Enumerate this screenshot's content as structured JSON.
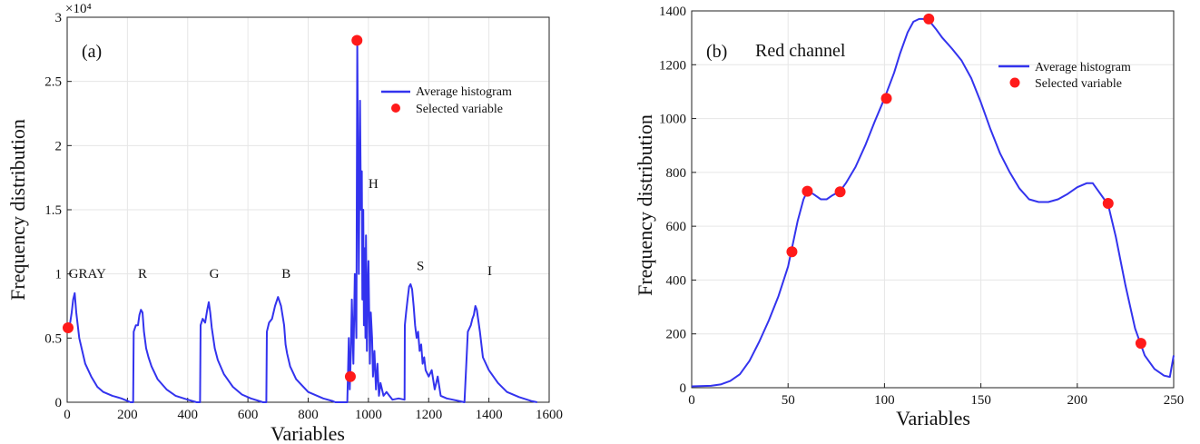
{
  "chart_data": [
    {
      "type": "line",
      "panel_label": "(a)",
      "xlabel": "Variables",
      "ylabel": "Frequency distribution",
      "xlim": [
        0,
        1600
      ],
      "ylim": [
        0,
        3
      ],
      "y_multiplier": "×10⁴",
      "x_ticks": [
        0,
        200,
        400,
        600,
        800,
        1000,
        1200,
        1400,
        1600
      ],
      "y_ticks": [
        0,
        0.5,
        1,
        1.5,
        2,
        2.5,
        3
      ],
      "y_tick_labels": [
        "0",
        "0.5",
        "1",
        "1.5",
        "2",
        "2.5",
        "3"
      ],
      "grid": true,
      "legend": {
        "position": "top-right",
        "entries": [
          "Average histogram",
          "Selected variable"
        ]
      },
      "series": [
        {
          "name": "Average histogram",
          "color": "#3333ee",
          "x": [
            0,
            5,
            10,
            15,
            20,
            25,
            30,
            40,
            50,
            60,
            80,
            100,
            120,
            150,
            180,
            200,
            210,
            219,
            221,
            228,
            235,
            240,
            245,
            250,
            255,
            262,
            270,
            280,
            300,
            330,
            360,
            400,
            430,
            441,
            443,
            450,
            458,
            465,
            470,
            475,
            480,
            490,
            500,
            520,
            550,
            580,
            610,
            650,
            661,
            663,
            670,
            680,
            690,
            700,
            710,
            720,
            725,
            730,
            740,
            760,
            800,
            850,
            880,
            890,
            930,
            935,
            938,
            942,
            945,
            950,
            955,
            960,
            963,
            965,
            968,
            972,
            975,
            978,
            980,
            983,
            985,
            988,
            990,
            992,
            995,
            998,
            1000,
            1005,
            1008,
            1012,
            1015,
            1020,
            1025,
            1030,
            1035,
            1040,
            1050,
            1060,
            1080,
            1100,
            1120,
            1121,
            1125,
            1130,
            1135,
            1140,
            1145,
            1150,
            1155,
            1160,
            1165,
            1170,
            1175,
            1180,
            1185,
            1190,
            1200,
            1210,
            1220,
            1230,
            1240,
            1260,
            1280,
            1300,
            1318,
            1319,
            1330,
            1340,
            1345,
            1350,
            1355,
            1360,
            1370,
            1380,
            1400,
            1430,
            1460,
            1500,
            1540,
            1560
          ],
          "y": [
            0.55,
            0.6,
            0.62,
            0.7,
            0.8,
            0.85,
            0.7,
            0.5,
            0.4,
            0.3,
            0.2,
            0.12,
            0.08,
            0.05,
            0.03,
            0.01,
            0.0,
            0.0,
            0.55,
            0.6,
            0.6,
            0.68,
            0.72,
            0.7,
            0.55,
            0.42,
            0.35,
            0.28,
            0.18,
            0.1,
            0.05,
            0.02,
            0.0,
            0.0,
            0.6,
            0.65,
            0.62,
            0.72,
            0.78,
            0.7,
            0.58,
            0.42,
            0.33,
            0.22,
            0.12,
            0.06,
            0.03,
            0.0,
            0.0,
            0.55,
            0.62,
            0.65,
            0.75,
            0.82,
            0.75,
            0.6,
            0.45,
            0.38,
            0.28,
            0.18,
            0.08,
            0.03,
            0.01,
            0.0,
            0.0,
            0.5,
            0.1,
            0.4,
            0.8,
            0.3,
            1.0,
            0.5,
            2.8,
            2.0,
            1.0,
            2.35,
            1.5,
            1.8,
            0.8,
            1.5,
            0.6,
            1.2,
            0.5,
            1.3,
            0.4,
            0.9,
            1.1,
            0.3,
            0.7,
            0.5,
            0.2,
            0.4,
            0.1,
            0.3,
            0.05,
            0.15,
            0.05,
            0.08,
            0.02,
            0.03,
            0.02,
            0.6,
            0.7,
            0.8,
            0.9,
            0.92,
            0.88,
            0.75,
            0.6,
            0.5,
            0.55,
            0.4,
            0.45,
            0.3,
            0.35,
            0.25,
            0.2,
            0.25,
            0.1,
            0.2,
            0.05,
            0.03,
            0.02,
            0.01,
            0.0,
            0.0,
            0.55,
            0.6,
            0.65,
            0.68,
            0.75,
            0.72,
            0.55,
            0.35,
            0.25,
            0.15,
            0.08,
            0.04,
            0.01,
            0.0
          ]
        },
        {
          "name": "Selected variable",
          "color": "#ff1a1a",
          "x": [
            3,
            940,
            962
          ],
          "y": [
            0.58,
            0.2,
            2.82
          ]
        }
      ],
      "annotations": [
        {
          "text": "GRAY",
          "x": 5,
          "y": 0.97
        },
        {
          "text": "R",
          "x": 235,
          "y": 0.97
        },
        {
          "text": "G",
          "x": 472,
          "y": 0.97
        },
        {
          "text": "B",
          "x": 712,
          "y": 0.97
        },
        {
          "text": "H",
          "x": 1000,
          "y": 1.67
        },
        {
          "text": "S",
          "x": 1160,
          "y": 1.03
        },
        {
          "text": "I",
          "x": 1395,
          "y": 0.99
        }
      ]
    },
    {
      "type": "line",
      "panel_label": "(b)",
      "title": "Red channel",
      "xlabel": "Variables",
      "ylabel": "Frequency distribution",
      "xlim": [
        0,
        250
      ],
      "ylim": [
        0,
        1400
      ],
      "x_ticks": [
        0,
        50,
        100,
        150,
        200,
        250
      ],
      "y_ticks": [
        0,
        200,
        400,
        600,
        800,
        1000,
        1200,
        1400
      ],
      "grid": true,
      "legend": {
        "position": "top-right",
        "entries": [
          "Average histogram",
          "Selected variable"
        ]
      },
      "series": [
        {
          "name": "Average histogram",
          "color": "#3333ee",
          "x": [
            0,
            10,
            15,
            20,
            25,
            30,
            35,
            40,
            45,
            50,
            55,
            58,
            60,
            63,
            67,
            70,
            73,
            77,
            80,
            85,
            90,
            95,
            100,
            105,
            108,
            112,
            115,
            118,
            120,
            123,
            127,
            130,
            135,
            140,
            145,
            150,
            155,
            160,
            165,
            170,
            175,
            180,
            185,
            190,
            195,
            200,
            205,
            208,
            210,
            213,
            216,
            220,
            225,
            230,
            235,
            240,
            245,
            248,
            250
          ],
          "y": [
            5,
            7,
            12,
            25,
            50,
            100,
            170,
            250,
            340,
            450,
            620,
            700,
            730,
            720,
            700,
            700,
            715,
            730,
            760,
            820,
            900,
            990,
            1075,
            1170,
            1240,
            1320,
            1360,
            1370,
            1370,
            1365,
            1330,
            1300,
            1260,
            1215,
            1150,
            1060,
            960,
            870,
            800,
            740,
            700,
            690,
            690,
            700,
            720,
            745,
            760,
            760,
            740,
            710,
            680,
            560,
            380,
            220,
            120,
            70,
            45,
            40,
            120
          ]
        },
        {
          "name": "Selected variable",
          "color": "#ff1a1a",
          "x": [
            52,
            60,
            77,
            101,
            123,
            216,
            233
          ],
          "y": [
            505,
            730,
            728,
            1075,
            1370,
            685,
            165
          ]
        }
      ]
    }
  ]
}
